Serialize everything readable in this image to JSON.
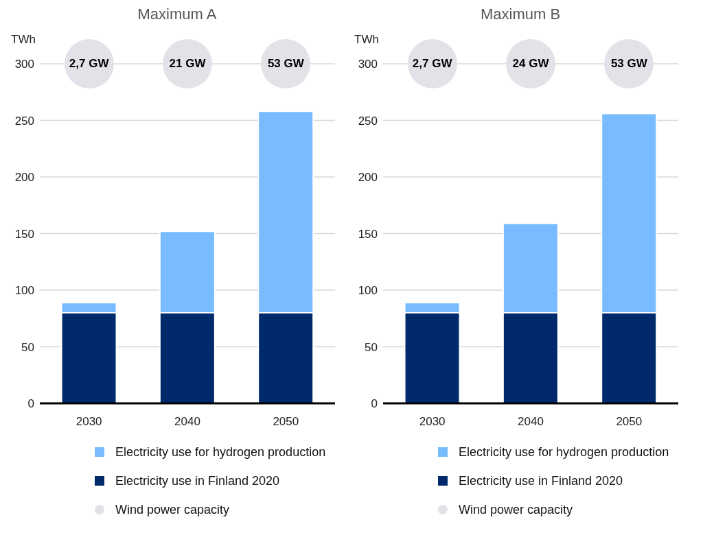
{
  "chart_data": [
    {
      "type": "bar",
      "title": "Maximum A",
      "ylabel": "TWh",
      "annotations": [
        "2,7 GW",
        "21 GW",
        "53 GW"
      ],
      "categories": [
        "2030",
        "2040",
        "2050"
      ],
      "stacked": true,
      "ylim": [
        0,
        300
      ],
      "yticks": [
        0,
        50,
        100,
        150,
        200,
        250,
        300
      ],
      "grid": "y",
      "legend": "bottom",
      "series": [
        {
          "name": "Electricity use in Finland 2020",
          "color": "#002a6c",
          "values": [
            80,
            80,
            80
          ]
        },
        {
          "name": "Electricity use for hydrogen production",
          "color": "#78bcff",
          "values": [
            9,
            72,
            178
          ]
        },
        {
          "name": "Wind power capacity",
          "type": "scatter",
          "color": "#e4e2e8",
          "values": [
            null,
            null,
            null
          ]
        }
      ]
    },
    {
      "type": "bar",
      "title": "Maximum B",
      "ylabel": "TWh",
      "annotations": [
        "2,7 GW",
        "24 GW",
        "53 GW"
      ],
      "categories": [
        "2030",
        "2040",
        "2050"
      ],
      "stacked": true,
      "ylim": [
        0,
        300
      ],
      "yticks": [
        0,
        50,
        100,
        150,
        200,
        250,
        300
      ],
      "grid": "y",
      "legend": "bottom",
      "series": [
        {
          "name": "Electricity use in Finland 2020",
          "color": "#002a6c",
          "values": [
            80,
            80,
            80
          ]
        },
        {
          "name": "Electricity use for hydrogen production",
          "color": "#78bcff",
          "values": [
            9,
            79,
            176
          ]
        },
        {
          "name": "Wind power capacity",
          "type": "scatter",
          "color": "#e4e2e8",
          "values": [
            null,
            null,
            null
          ]
        }
      ]
    }
  ]
}
